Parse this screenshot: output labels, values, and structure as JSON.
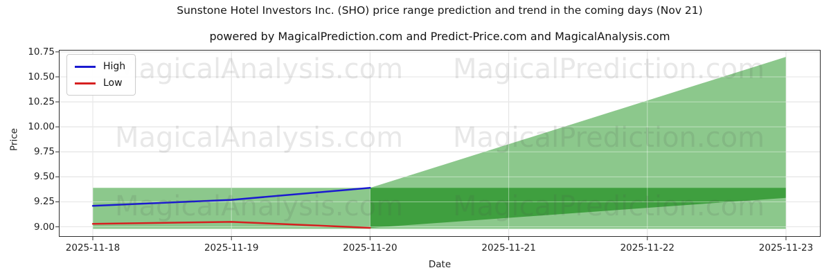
{
  "title": "Sunstone Hotel Investors Inc. (SHO) price range prediction and trend in the coming days (Nov 21)",
  "subtitle": "powered by MagicalPrediction.com and Predict-Price.com and MagicalAnalysis.com",
  "axes": {
    "x_label": "Date",
    "y_label": "Price"
  },
  "legend": {
    "items": [
      {
        "label": "High",
        "color": "#1a1ad0"
      },
      {
        "label": "Low",
        "color": "#d62020"
      }
    ]
  },
  "watermarks": {
    "texts": [
      "MagicalAnalysis.com",
      "MagicalPrediction.com"
    ]
  },
  "colors": {
    "band_light": "#8cc88c",
    "band_dark": "#3f9f3f",
    "grid": "#cccccc",
    "frame": "#2e2e2e"
  },
  "chart_data": {
    "type": "line",
    "title": "Sunstone Hotel Investors Inc. (SHO) price range prediction and trend in the coming days (Nov 21)",
    "xlabel": "Date",
    "ylabel": "Price",
    "x_categories": [
      "2025-11-18",
      "2025-11-19",
      "2025-11-20",
      "2025-11-21",
      "2025-11-22",
      "2025-11-23"
    ],
    "y_ticks": [
      9.0,
      9.25,
      9.5,
      9.75,
      10.0,
      10.25,
      10.5,
      10.75
    ],
    "ylim": [
      8.9,
      10.77
    ],
    "grid": true,
    "legend_position": "upper-left",
    "series": [
      {
        "name": "High",
        "color": "#1a1ad0",
        "x_indices": [
          0,
          1,
          2
        ],
        "values": [
          9.21,
          9.27,
          9.39
        ]
      },
      {
        "name": "Low",
        "color": "#d62020",
        "x_indices": [
          0,
          1,
          2
        ],
        "values": [
          9.03,
          9.05,
          8.99
        ]
      }
    ],
    "bands": [
      {
        "name": "historical-range",
        "style": "light",
        "x_indices": [
          0,
          2
        ],
        "top": [
          9.39,
          9.39
        ],
        "bottom": [
          8.98,
          8.98
        ]
      },
      {
        "name": "forecast-wide",
        "style": "light",
        "x_indices": [
          2,
          5
        ],
        "top": [
          9.39,
          10.7
        ],
        "bottom": [
          8.98,
          8.98
        ]
      },
      {
        "name": "forecast-likely",
        "style": "dark",
        "x_indices": [
          2,
          5
        ],
        "top": [
          9.39,
          9.39
        ],
        "bottom": [
          8.99,
          9.29
        ]
      }
    ]
  }
}
